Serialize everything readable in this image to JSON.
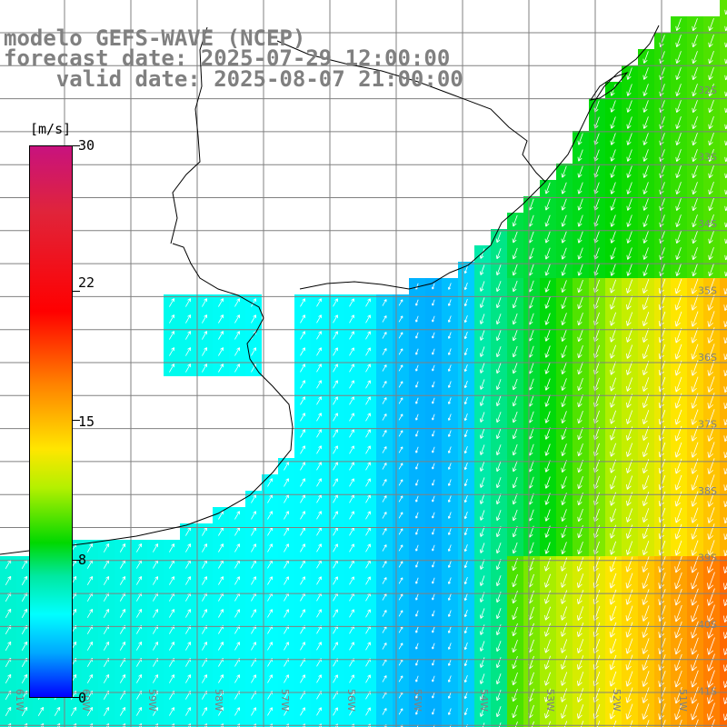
{
  "title": {
    "line1": "modelo GEFS-WAVE (NCEP)",
    "line2": "forecast date: 2025-07-29 12:00:00",
    "line3": "    valid date: 2025-08-07 21:00:00"
  },
  "colorbar": {
    "unit": "[m/s]",
    "labels": [
      "30",
      "22",
      "15",
      "8",
      "0"
    ],
    "min": 0,
    "max": 30
  },
  "map": {
    "lat_labels": [
      "32S",
      "33S",
      "34S",
      "35S",
      "36S",
      "37S",
      "38S",
      "39S",
      "40S",
      "41S"
    ],
    "lon_labels": [
      "61W",
      "60W",
      "59W",
      "58W",
      "57W",
      "56W",
      "55W",
      "54W",
      "53W",
      "52W",
      "51W"
    ],
    "colors": {
      "land": "#ffffff",
      "grid": "#808080",
      "coastline": "#000000",
      "arrows": "#ffffff",
      "title": "#808080"
    }
  }
}
